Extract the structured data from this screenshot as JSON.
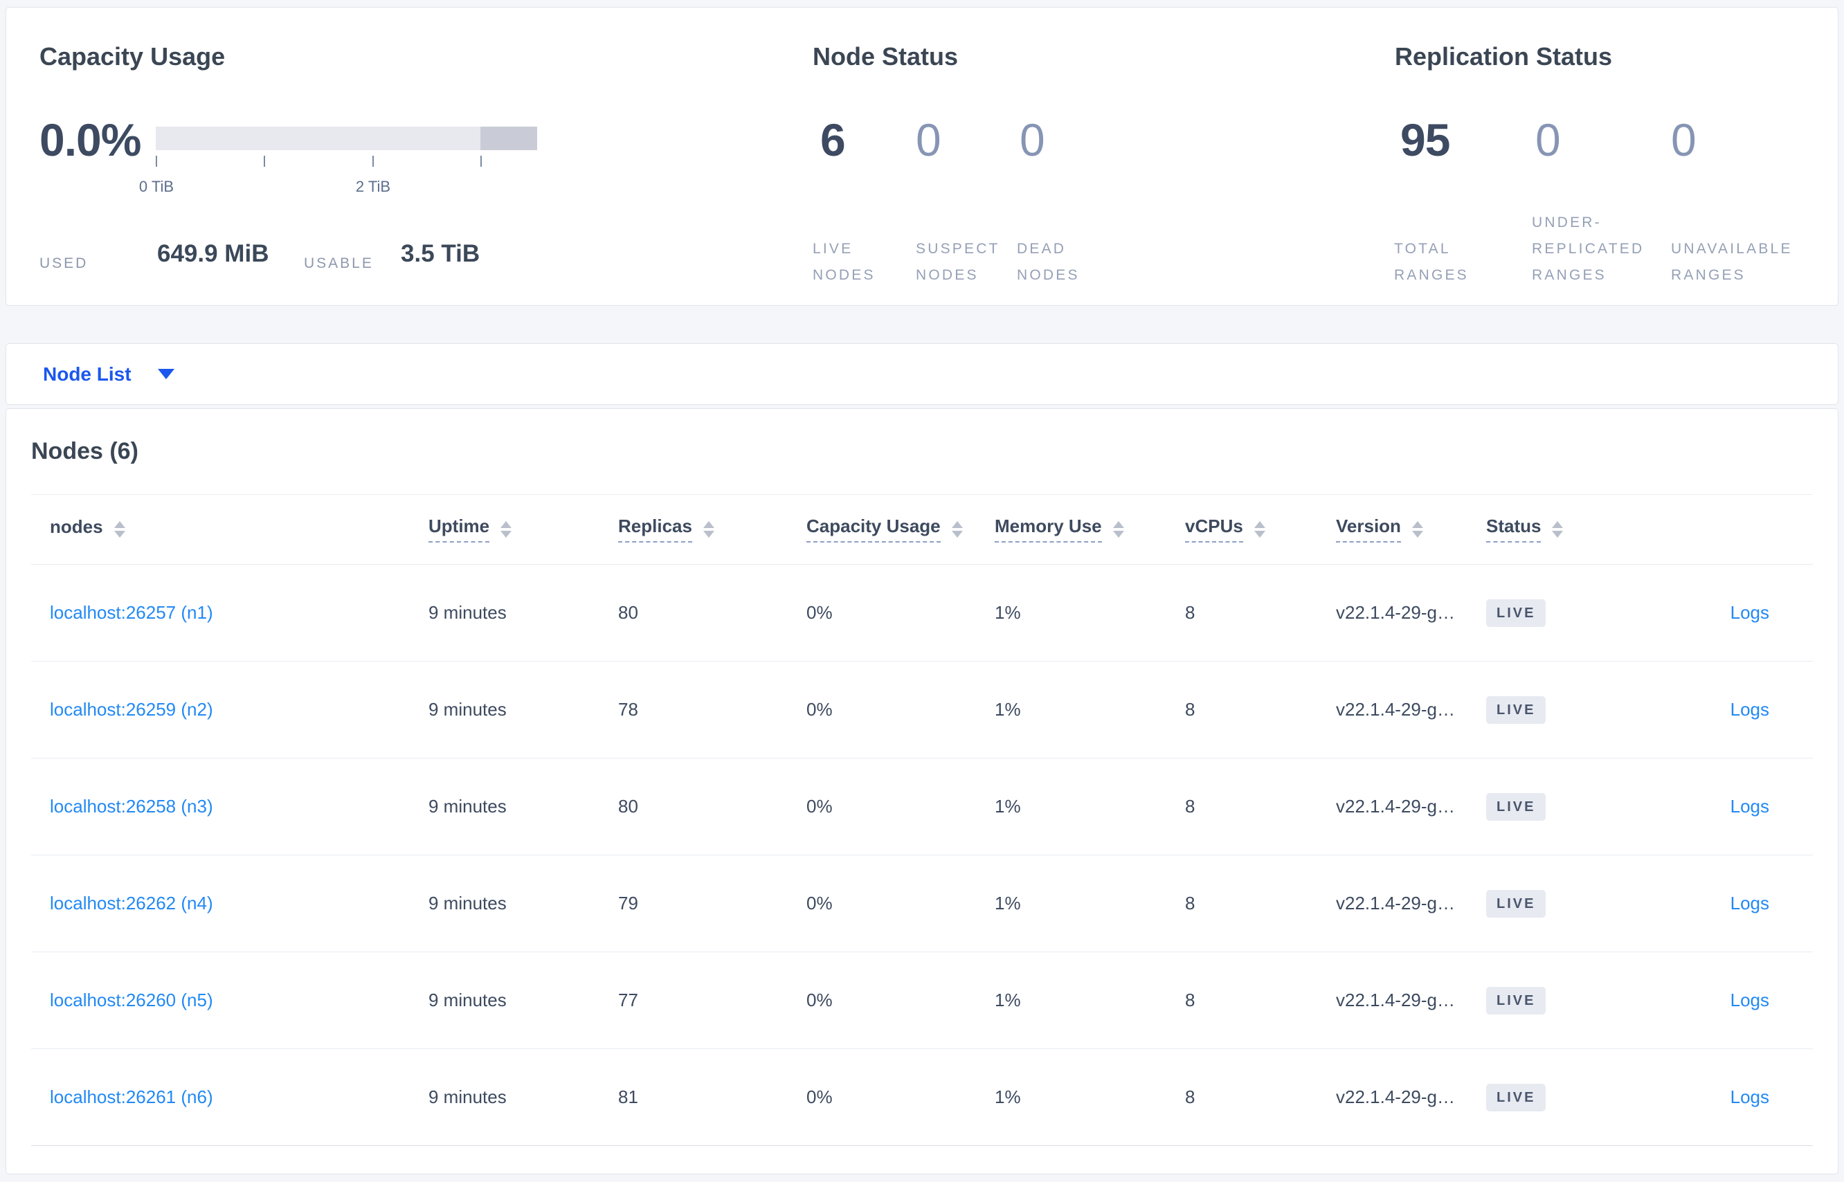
{
  "colors": {
    "accent_blue": "#1b57ee",
    "link_blue": "#2289f5",
    "badge_bg": "#e7eaf1",
    "badge_text": "#49556c",
    "gauge_track": "#e7e9ee",
    "gauge_overflow_segment": "#c9ccd6"
  },
  "summary": {
    "capacity": {
      "title": "Capacity Usage",
      "percent": "0.0%",
      "gauge": {
        "ticks": [
          {
            "pos_pct": 0,
            "label": "0 TiB"
          },
          {
            "pos_pct": 28.4,
            "label": ""
          },
          {
            "pos_pct": 56.8,
            "label": "2 TiB"
          },
          {
            "pos_pct": 85.1,
            "label": ""
          }
        ],
        "overflow_start_pct": 85.1
      },
      "used_label": "USED",
      "used_value": "649.9 MiB",
      "usable_label": "USABLE",
      "usable_value": "3.5 TiB"
    },
    "node_status": {
      "title": "Node Status",
      "metrics": [
        {
          "value": "6",
          "label_lines": [
            "LIVE",
            "NODES"
          ]
        },
        {
          "value": "0",
          "label_lines": [
            "SUSPECT",
            "NODES"
          ]
        },
        {
          "value": "0",
          "label_lines": [
            "DEAD",
            "NODES"
          ]
        }
      ]
    },
    "replication_status": {
      "title": "Replication Status",
      "metrics": [
        {
          "value": "95",
          "label_lines": [
            "TOTAL",
            "RANGES"
          ]
        },
        {
          "value": "0",
          "label_lines": [
            "UNDER-",
            "REPLICATED",
            "RANGES"
          ]
        },
        {
          "value": "0",
          "label_lines": [
            "UNAVAILABLE",
            "RANGES"
          ]
        }
      ]
    }
  },
  "view_selector": {
    "label": "Node List"
  },
  "nodes_table": {
    "title": "Nodes (6)",
    "columns": [
      {
        "label": "nodes",
        "sortable": true,
        "tooltip_underline": false
      },
      {
        "label": "Uptime",
        "sortable": true,
        "tooltip_underline": true
      },
      {
        "label": "Replicas",
        "sortable": true,
        "tooltip_underline": true
      },
      {
        "label": "Capacity Usage",
        "sortable": true,
        "tooltip_underline": true
      },
      {
        "label": "Memory Use",
        "sortable": true,
        "tooltip_underline": true
      },
      {
        "label": "vCPUs",
        "sortable": true,
        "tooltip_underline": true
      },
      {
        "label": "Version",
        "sortable": true,
        "tooltip_underline": true
      },
      {
        "label": "Status",
        "sortable": true,
        "tooltip_underline": true
      }
    ],
    "rows": [
      {
        "node": "localhost:26257 (n1)",
        "uptime": "9 minutes",
        "replicas": "80",
        "capacity_usage": "0%",
        "memory_use": "1%",
        "vcpus": "8",
        "version": "v22.1.4-29-g…",
        "status": "LIVE",
        "logs_label": "Logs"
      },
      {
        "node": "localhost:26259 (n2)",
        "uptime": "9 minutes",
        "replicas": "78",
        "capacity_usage": "0%",
        "memory_use": "1%",
        "vcpus": "8",
        "version": "v22.1.4-29-g…",
        "status": "LIVE",
        "logs_label": "Logs"
      },
      {
        "node": "localhost:26258 (n3)",
        "uptime": "9 minutes",
        "replicas": "80",
        "capacity_usage": "0%",
        "memory_use": "1%",
        "vcpus": "8",
        "version": "v22.1.4-29-g…",
        "status": "LIVE",
        "logs_label": "Logs"
      },
      {
        "node": "localhost:26262 (n4)",
        "uptime": "9 minutes",
        "replicas": "79",
        "capacity_usage": "0%",
        "memory_use": "1%",
        "vcpus": "8",
        "version": "v22.1.4-29-g…",
        "status": "LIVE",
        "logs_label": "Logs"
      },
      {
        "node": "localhost:26260 (n5)",
        "uptime": "9 minutes",
        "replicas": "77",
        "capacity_usage": "0%",
        "memory_use": "1%",
        "vcpus": "8",
        "version": "v22.1.4-29-g…",
        "status": "LIVE",
        "logs_label": "Logs"
      },
      {
        "node": "localhost:26261 (n6)",
        "uptime": "9 minutes",
        "replicas": "81",
        "capacity_usage": "0%",
        "memory_use": "1%",
        "vcpus": "8",
        "version": "v22.1.4-29-g…",
        "status": "LIVE",
        "logs_label": "Logs"
      }
    ]
  }
}
